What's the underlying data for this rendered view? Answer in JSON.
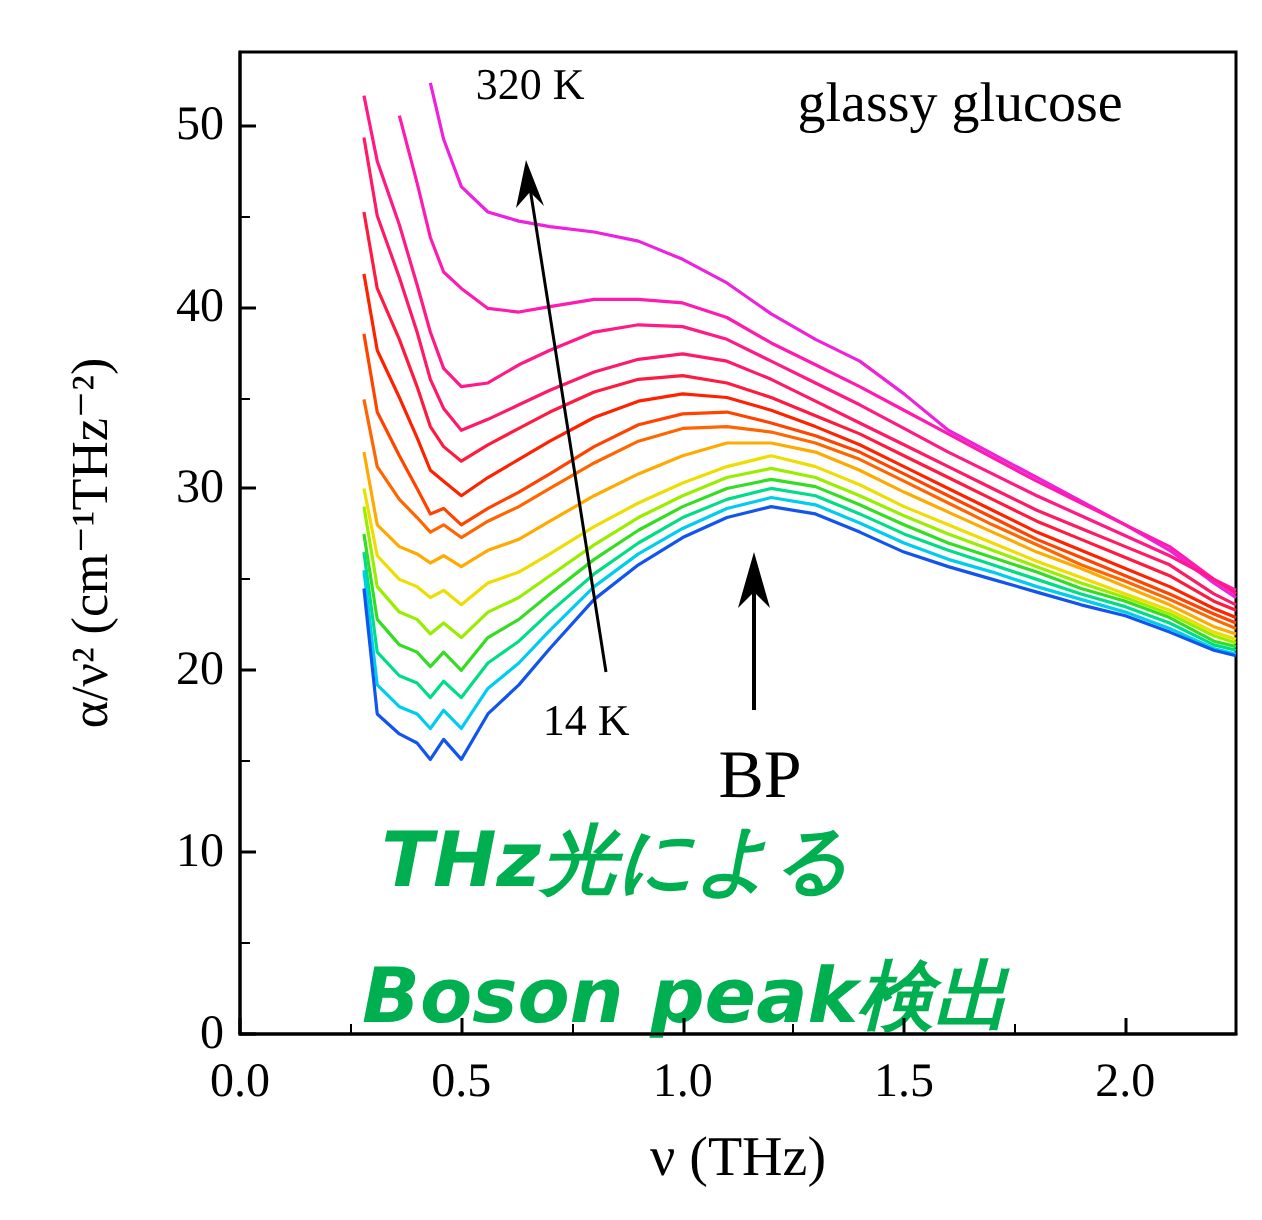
{
  "chart_data": {
    "type": "line",
    "xlabel": "ν (THz)",
    "ylabel": "α/ν² (cm⁻¹THz⁻²)",
    "x": [
      0.28,
      0.31,
      0.36,
      0.4,
      0.43,
      0.46,
      0.5,
      0.56,
      0.63,
      0.7,
      0.8,
      0.9,
      1.0,
      1.1,
      1.2,
      1.3,
      1.4,
      1.5,
      1.6,
      1.7,
      1.8,
      1.9,
      2.0,
      2.1,
      2.2,
      2.25
    ],
    "xlim": [
      0,
      2.25
    ],
    "xticks": [
      {
        "value": 0,
        "label": "0.0"
      },
      0.5,
      {
        "value": 1,
        "label": "1.0"
      },
      1.5,
      {
        "value": 2,
        "label": "2.0"
      }
    ],
    "ylim": [
      0,
      54
    ],
    "yticks": [
      0,
      10,
      20,
      30,
      40,
      50
    ],
    "grid": false,
    "marker": "none",
    "line_style": "solid",
    "series": [
      {
        "color": "#ee22dd",
        "values": [
          null,
          null,
          null,
          null,
          52.3,
          49.2,
          46.6,
          45.2,
          44.7,
          44.4,
          44.1,
          43.6,
          42.6,
          41.3,
          39.6,
          38.2,
          37.0,
          35.2,
          33.2,
          31.9,
          30.6,
          29.3,
          28.0,
          26.6,
          24.8,
          24.0
        ]
      },
      {
        "color": "#ff1ab0",
        "values": [
          null,
          null,
          50.5,
          46.8,
          43.8,
          41.9,
          41.0,
          39.9,
          39.7,
          40.0,
          40.4,
          40.4,
          40.2,
          39.4,
          38.0,
          36.8,
          35.6,
          34.3,
          33.0,
          31.7,
          30.4,
          29.2,
          28.0,
          26.8,
          25.0,
          24.4
        ]
      },
      {
        "color": "#ff1a88",
        "values": [
          51.6,
          48.0,
          44.5,
          41.2,
          38.6,
          36.6,
          35.6,
          35.8,
          36.8,
          37.6,
          38.6,
          39.0,
          38.9,
          38.2,
          37.0,
          35.8,
          34.6,
          33.3,
          32.0,
          30.8,
          29.6,
          28.5,
          27.4,
          26.3,
          25.0,
          24.2
        ]
      },
      {
        "color": "#ff1a66",
        "values": [
          49.3,
          45.0,
          41.6,
          38.6,
          36.0,
          34.4,
          33.2,
          33.8,
          34.6,
          35.4,
          36.4,
          37.1,
          37.4,
          37.0,
          36.0,
          34.8,
          33.6,
          32.4,
          31.2,
          30.0,
          28.8,
          27.8,
          26.8,
          25.8,
          24.2,
          23.6
        ]
      },
      {
        "color": "#ff1a40",
        "values": [
          45.2,
          41.0,
          38.2,
          35.6,
          33.4,
          32.3,
          31.5,
          32.4,
          33.3,
          34.2,
          35.3,
          36.0,
          36.2,
          35.8,
          35.0,
          34.0,
          33.0,
          31.8,
          30.6,
          29.4,
          28.2,
          27.2,
          26.2,
          25.2,
          23.8,
          23.3
        ]
      },
      {
        "color": "#ff2200",
        "values": [
          41.8,
          37.6,
          35.0,
          32.8,
          31.0,
          30.4,
          29.6,
          30.6,
          31.6,
          32.6,
          33.9,
          34.8,
          35.2,
          35.0,
          34.3,
          33.4,
          32.4,
          31.2,
          30.0,
          28.8,
          27.6,
          26.6,
          25.6,
          24.6,
          23.4,
          22.9
        ]
      },
      {
        "color": "#ff4400",
        "values": [
          38.5,
          34.2,
          31.8,
          30.0,
          28.6,
          28.9,
          28.0,
          28.9,
          29.8,
          30.8,
          32.3,
          33.5,
          34.1,
          34.2,
          33.6,
          32.9,
          32.0,
          30.8,
          29.6,
          28.4,
          27.2,
          26.2,
          25.2,
          24.2,
          23.1,
          22.6
        ]
      },
      {
        "color": "#ff6600",
        "values": [
          34.9,
          31.2,
          29.4,
          28.4,
          27.6,
          28.0,
          27.3,
          28.2,
          29.0,
          30.0,
          31.4,
          32.6,
          33.3,
          33.4,
          33.1,
          32.5,
          31.6,
          30.4,
          29.2,
          28.0,
          26.9,
          25.8,
          24.9,
          23.9,
          22.8,
          22.3
        ]
      },
      {
        "color": "#ffaa00",
        "values": [
          32.0,
          28.0,
          26.8,
          26.4,
          25.9,
          26.3,
          25.7,
          26.6,
          27.2,
          28.2,
          29.6,
          30.8,
          31.8,
          32.5,
          32.5,
          32.0,
          31.0,
          29.8,
          28.7,
          27.6,
          26.5,
          25.6,
          24.6,
          23.6,
          22.4,
          22.0
        ]
      },
      {
        "color": "#eedd00",
        "values": [
          30.0,
          26.3,
          25.0,
          24.6,
          24.0,
          24.4,
          23.6,
          24.8,
          25.4,
          26.4,
          27.9,
          29.2,
          30.3,
          31.2,
          31.8,
          31.2,
          30.2,
          29.0,
          28.0,
          27.0,
          26.0,
          25.1,
          24.2,
          23.3,
          22.1,
          21.7
        ]
      },
      {
        "color": "#99ee00",
        "values": [
          29.0,
          24.6,
          23.2,
          22.8,
          22.0,
          22.6,
          21.8,
          23.2,
          24.0,
          25.2,
          26.9,
          28.4,
          29.6,
          30.6,
          31.1,
          30.6,
          29.6,
          28.5,
          27.5,
          26.6,
          25.7,
          24.8,
          24.0,
          23.1,
          21.9,
          21.5
        ]
      },
      {
        "color": "#33dd22",
        "values": [
          27.5,
          22.8,
          21.4,
          21.0,
          20.2,
          21.0,
          20.0,
          21.8,
          22.8,
          24.2,
          26.1,
          27.7,
          29.0,
          30.0,
          30.5,
          30.1,
          29.1,
          28.0,
          27.0,
          26.2,
          25.4,
          24.5,
          23.8,
          22.9,
          21.6,
          21.3
        ]
      },
      {
        "color": "#00dd88",
        "values": [
          26.5,
          21.0,
          19.7,
          19.3,
          18.5,
          19.4,
          18.5,
          20.4,
          21.6,
          23.2,
          25.3,
          27.0,
          28.4,
          29.4,
          30.0,
          29.6,
          28.6,
          27.5,
          26.6,
          25.8,
          25.0,
          24.2,
          23.5,
          22.6,
          21.4,
          21.1
        ]
      },
      {
        "color": "#00ccee",
        "values": [
          25.5,
          19.2,
          18.0,
          17.6,
          16.8,
          17.8,
          16.8,
          19.0,
          20.4,
          22.2,
          24.6,
          26.4,
          27.8,
          28.9,
          29.5,
          29.1,
          28.1,
          27.0,
          26.1,
          25.4,
          24.6,
          23.9,
          23.2,
          22.3,
          21.2,
          20.9
        ]
      },
      {
        "color": "#1155ee",
        "values": [
          24.5,
          17.6,
          16.5,
          16.0,
          15.1,
          16.2,
          15.1,
          17.6,
          19.2,
          21.2,
          23.9,
          25.8,
          27.3,
          28.4,
          29.0,
          28.6,
          27.6,
          26.5,
          25.7,
          25.0,
          24.3,
          23.6,
          23.0,
          22.1,
          21.1,
          20.8
        ]
      }
    ],
    "annotations": [
      "320 K",
      "14 K",
      "BP",
      "glassy glucose",
      "THz光による",
      "Boson peak検出"
    ]
  }
}
